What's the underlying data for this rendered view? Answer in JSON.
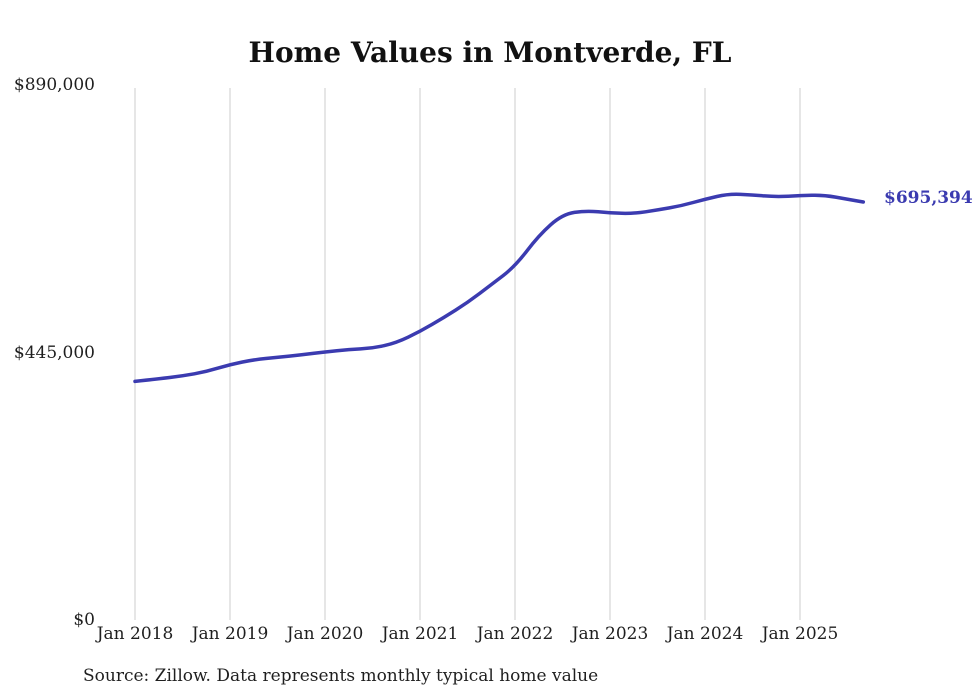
{
  "title": "Home Values in Montverde, FL",
  "source_note": "Source: Zillow. Data represents monthly typical home value",
  "end_label": "$695,394",
  "colors": {
    "line": "#3b3bb0",
    "grid": "#cccccc",
    "text": "#1f1f1f",
    "end_label": "#3b3bb0"
  },
  "y_axis": {
    "max": 890000,
    "ticks": [
      {
        "label": "$890,000",
        "value": 890000
      },
      {
        "label": "$445,000",
        "value": 445000
      },
      {
        "label": "$0",
        "value": 0
      }
    ]
  },
  "x_axis": {
    "ticks": [
      {
        "label": "Jan 2018",
        "month": "2018-01"
      },
      {
        "label": "Jan 2019",
        "month": "2019-01"
      },
      {
        "label": "Jan 2020",
        "month": "2020-01"
      },
      {
        "label": "Jan 2021",
        "month": "2021-01"
      },
      {
        "label": "Jan 2022",
        "month": "2022-01"
      },
      {
        "label": "Jan 2023",
        "month": "2023-01"
      },
      {
        "label": "Jan 2024",
        "month": "2024-01"
      },
      {
        "label": "Jan 2025",
        "month": "2025-01"
      }
    ]
  },
  "chart_data": {
    "type": "line",
    "title": "Home Values in Montverde, FL",
    "series_name": "Typical home value",
    "x": [
      "2018-01",
      "2018-04",
      "2018-07",
      "2018-10",
      "2019-01",
      "2019-04",
      "2019-07",
      "2019-10",
      "2020-01",
      "2020-04",
      "2020-07",
      "2020-10",
      "2021-01",
      "2021-04",
      "2021-07",
      "2021-10",
      "2022-01",
      "2022-04",
      "2022-07",
      "2022-10",
      "2023-01",
      "2023-04",
      "2023-07",
      "2023-10",
      "2024-01",
      "2024-04",
      "2024-07",
      "2024-10",
      "2025-01",
      "2025-04",
      "2025-07",
      "2025-09"
    ],
    "values": [
      397000,
      401000,
      406000,
      413000,
      425000,
      433000,
      437000,
      441000,
      446000,
      450000,
      452000,
      461000,
      480000,
      503000,
      528000,
      558000,
      588000,
      640000,
      675000,
      681000,
      677000,
      676000,
      682000,
      689000,
      700000,
      709000,
      707000,
      704000,
      706000,
      707000,
      700000,
      695394
    ],
    "final_value": 695394,
    "final_value_label": "$695,394",
    "ylim": [
      0,
      890000
    ],
    "x_range": [
      "2018-01",
      "2025-09"
    ],
    "grid": "vertical-only",
    "legend": "none"
  }
}
